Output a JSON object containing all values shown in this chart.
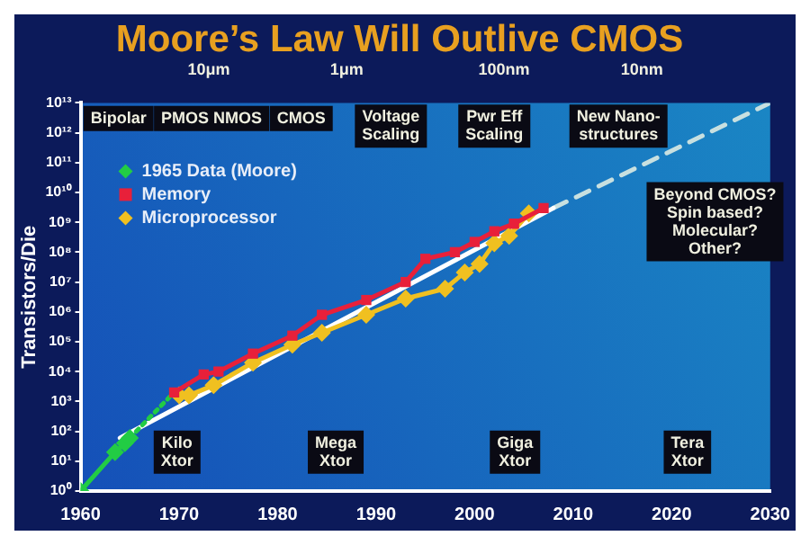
{
  "chart_data": {
    "type": "line",
    "title": "Moore’s Law Will Outlive CMOS",
    "ylabel": "Transistors/Die",
    "log": "y",
    "legend": "top left",
    "xlim": [
      1960,
      2030
    ],
    "xticks": [
      1960,
      1970,
      1980,
      1990,
      2000,
      2010,
      2020,
      2030
    ],
    "ylim": [
      1,
      10000000000000
    ],
    "yticks": [
      {
        "value": 1,
        "label": "10⁰"
      },
      {
        "value": 10,
        "label": "10¹"
      },
      {
        "value": 100,
        "label": "10²"
      },
      {
        "value": 1000,
        "label": "10³"
      },
      {
        "value": 10000,
        "label": "10⁴"
      },
      {
        "value": 100000,
        "label": "10⁵"
      },
      {
        "value": 1000000,
        "label": "10⁶"
      },
      {
        "value": 10000000,
        "label": "10⁷"
      },
      {
        "value": 100000000,
        "label": "10⁸"
      },
      {
        "value": 1000000000,
        "label": "10⁹"
      },
      {
        "value": 10000000000,
        "label": "10¹⁰"
      },
      {
        "value": 100000000000,
        "label": "10¹¹"
      },
      {
        "value": 1000000000000,
        "label": "10¹²"
      },
      {
        "value": 10000000000000,
        "label": "10¹³"
      }
    ],
    "series": [
      {
        "name": "1965 Data (Moore)",
        "color": "#22cc44",
        "marker": "diamond",
        "x": [
          1960,
          1963.5,
          1964.5,
          1965
        ],
        "values": [
          1,
          20,
          40,
          60
        ]
      },
      {
        "color": "#22cc44",
        "marker": "none",
        "line_style": "dotted",
        "x": [
          1965,
          1970
        ],
        "values": [
          60,
          3000
        ]
      },
      {
        "name": "Memory",
        "color": "#e8203a",
        "marker": "square",
        "x": [
          1969.5,
          1972.5,
          1974,
          1977.5,
          1981.5,
          1984.5,
          1989,
          1993,
          1995,
          1998,
          2000,
          2002,
          2004,
          2007
        ],
        "values": [
          2000,
          8000,
          10000,
          40000,
          160000,
          800000,
          2500000,
          10000000,
          60000000,
          100000000,
          220000000,
          500000000,
          900000000,
          3000000000
        ]
      },
      {
        "name": "Microprocessor",
        "color": "#f0c020",
        "marker": "diamond",
        "x": [
          1970,
          1971,
          1973.5,
          1977.5,
          1981.5,
          1984.5,
          1989,
          1993,
          1997,
          1999,
          2000.5,
          2002,
          2003.5,
          2005.5
        ],
        "values": [
          1600,
          1600,
          3500,
          20000,
          80000,
          200000,
          800000,
          2800000,
          6000000,
          21000000,
          40000000,
          200000000,
          350000000,
          2000000000
        ]
      },
      {
        "color": "#ffffff",
        "marker": "none",
        "x": [
          1964,
          2008
        ],
        "values": [
          60,
          3000000000
        ]
      },
      {
        "color": "#c8e0e0",
        "marker": "none",
        "line_style": "dashed",
        "x": [
          2008,
          2030
        ],
        "values": [
          3000000000,
          10000000000000
        ]
      }
    ],
    "annotations": [
      "Bipolar",
      "PMOS NMOS",
      "CMOS",
      "Voltage\nScaling",
      "Pwr Eff\nScaling",
      "New Nano-\nstructures",
      "Kilo\nXtor",
      "Mega\nXtor",
      "Giga\nXtor",
      "Tera\nXtor",
      "Beyond CMOS?\nSpin based?\nMolecular?\nOther?",
      "10μm",
      "1μm",
      "100nm",
      "10nm"
    ]
  }
}
